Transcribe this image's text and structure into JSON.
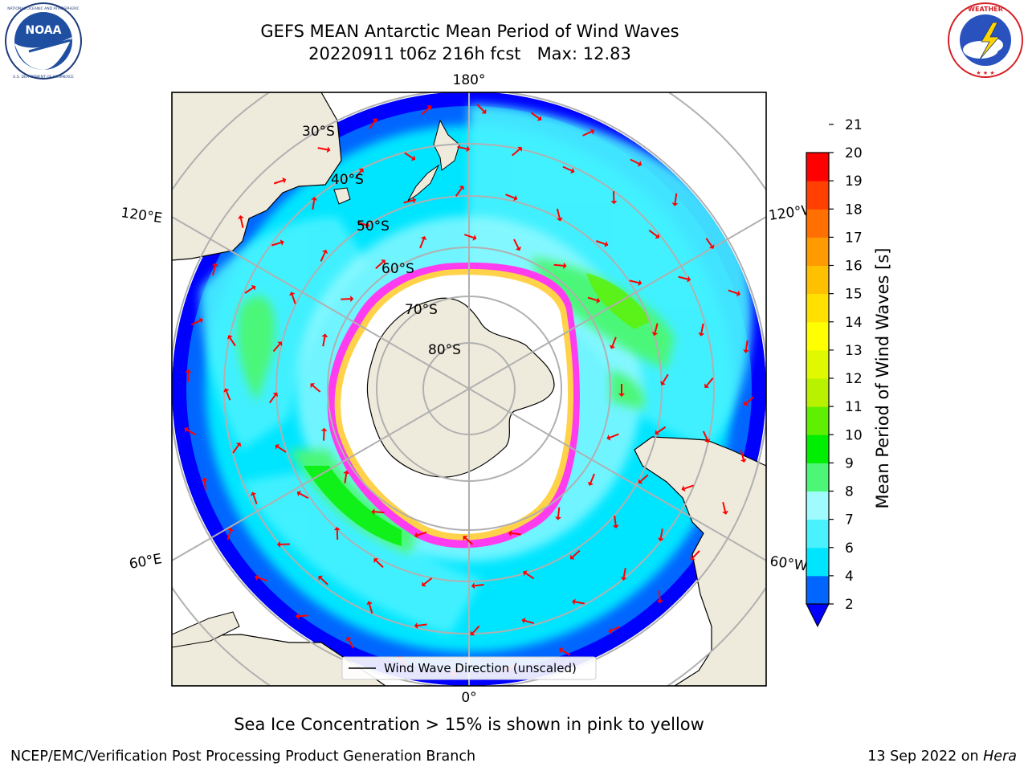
{
  "title": {
    "line1": "GEFS MEAN Antarctic Mean Period of Wind Waves",
    "line2": "20220911 t06z 216h fcst   Max: 12.83"
  },
  "logos": {
    "left": {
      "icon": "noaa-logo",
      "text": "NOAA",
      "ring_text": "NATIONAL OCEANIC AND ATMOSPHERIC ADMINISTRATION · U.S. DEPARTMENT OF COMMERCE"
    },
    "right": {
      "icon": "nws-logo",
      "ring_text": "NATIONAL WEATHER SERVICE"
    }
  },
  "map": {
    "projection": "south-polar-stereographic",
    "meridian_labels": {
      "top": "180°",
      "bottom": "0°",
      "upper_left": "120°E",
      "lower_left": "60°E",
      "upper_right": "120°W",
      "lower_right": "60°W"
    },
    "parallel_labels": [
      "30°S",
      "40°S",
      "50°S",
      "60°S",
      "70°S",
      "80°S"
    ],
    "legend_label": "Wind Wave Direction (unscaled)",
    "colors": {
      "land": "#efebdc",
      "ice_edge": "#ff3cf0",
      "arrow": "#ff0000",
      "grid": "#b0b0b0"
    }
  },
  "colorbar": {
    "label": "Mean Period of Wind Waves [s]",
    "ticks": [
      "2",
      "4",
      "6",
      "7",
      "8",
      "9",
      "10",
      "11",
      "12",
      "13",
      "14",
      "15",
      "16",
      "17",
      "18",
      "19",
      "20",
      "21"
    ],
    "colors": [
      "#0066ff",
      "#00e5ff",
      "#4af2ff",
      "#a0fbff",
      "#4cf778",
      "#00ef00",
      "#5ef000",
      "#b8f200",
      "#e0f800",
      "#ffff00",
      "#ffe000",
      "#ffc000",
      "#ff9a00",
      "#ff7000",
      "#ff4000",
      "#ff0000"
    ],
    "extend_color": "#0000ff"
  },
  "footnote": "Sea Ice Concentration > 15% is shown in pink to yellow",
  "credits": {
    "left": "NCEP/EMC/Verification Post Processing Product Generation Branch",
    "right_prefix": "13 Sep 2022 on ",
    "right_host": "Hera"
  }
}
